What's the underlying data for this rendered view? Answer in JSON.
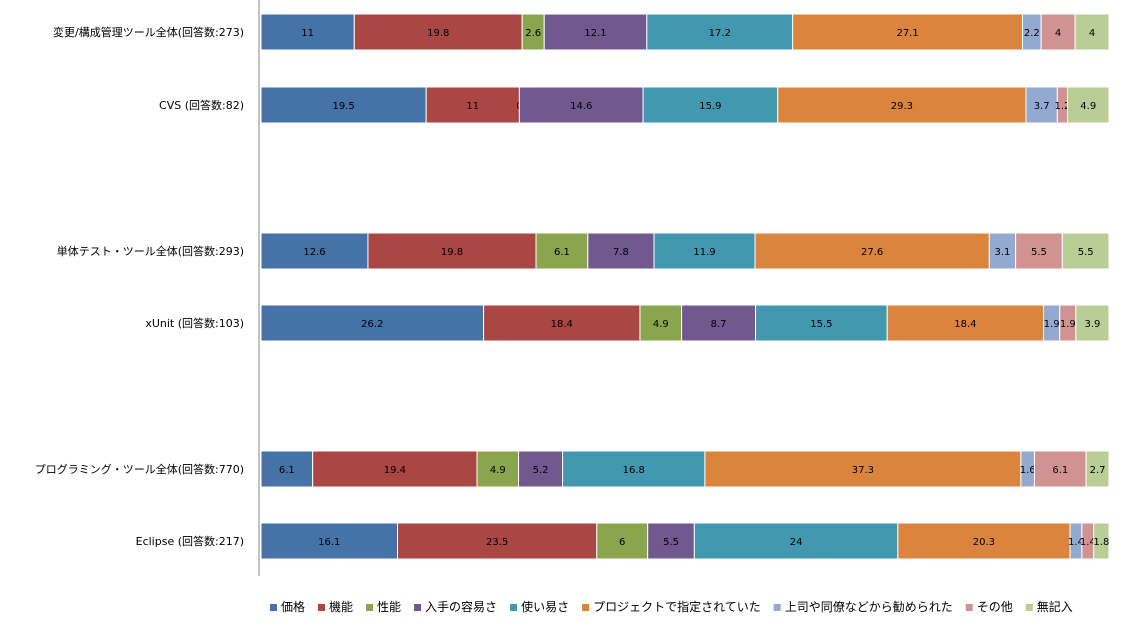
{
  "chart_data": {
    "type": "bar",
    "orientation": "horizontal",
    "stacked": "percent",
    "categories": [
      "変更/構成管理ツール全体(回答数:273)",
      "CVS (回答数:82)",
      "",
      "単体テスト・ツール全体(回答数:293)",
      "xUnit (回答数:103)",
      "",
      "プログラミング・ツール全体(回答数:770)",
      "Eclipse (回答数:217)"
    ],
    "series": [
      {
        "name": "価格",
        "color": "#4572A7",
        "values": [
          11,
          19.5,
          null,
          12.6,
          26.2,
          null,
          6.1,
          16.1
        ]
      },
      {
        "name": "機能",
        "color": "#AA4643",
        "values": [
          19.8,
          11,
          null,
          19.8,
          18.4,
          null,
          19.4,
          23.5
        ]
      },
      {
        "name": "性能",
        "color": "#89A54E",
        "values": [
          2.6,
          0,
          null,
          6.1,
          4.9,
          null,
          4.9,
          6
        ]
      },
      {
        "name": "入手の容易さ",
        "color": "#71588F",
        "values": [
          12.1,
          14.6,
          null,
          7.8,
          8.7,
          null,
          5.2,
          5.5
        ]
      },
      {
        "name": "使い易さ",
        "color": "#4198AF",
        "values": [
          17.2,
          15.9,
          null,
          11.9,
          15.5,
          null,
          16.8,
          24
        ]
      },
      {
        "name": "プロジェクトで指定されていた",
        "color": "#DB843D",
        "values": [
          27.1,
          29.3,
          null,
          27.6,
          18.4,
          null,
          37.3,
          20.3
        ]
      },
      {
        "name": "上司や同僚などから勧められた",
        "color": "#93A9CF",
        "values": [
          2.2,
          3.7,
          null,
          3.1,
          1.9,
          null,
          1.6,
          1.4
        ]
      },
      {
        "name": "その他",
        "color": "#D19392",
        "values": [
          4,
          1.2,
          null,
          5.5,
          1.9,
          null,
          6.1,
          1.4
        ]
      },
      {
        "name": "無記入",
        "color": "#B9CD96",
        "values": [
          4,
          4.9,
          null,
          5.5,
          3.9,
          null,
          2.7,
          1.8
        ]
      }
    ],
    "xlim": [
      0,
      100
    ],
    "legend_position": "bottom",
    "grid": false,
    "data_labels": true
  }
}
